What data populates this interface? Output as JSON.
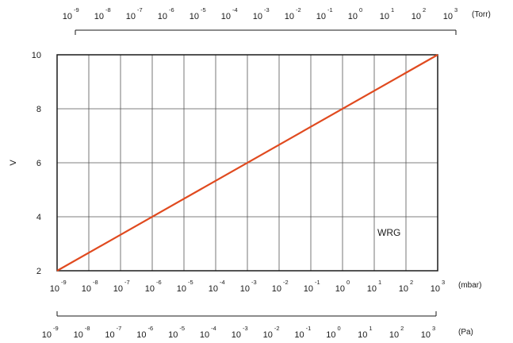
{
  "chart_data": {
    "type": "line",
    "ylabel": "V",
    "y_ticks": [
      "2",
      "4",
      "6",
      "8",
      "10"
    ],
    "ylim": [
      2,
      10
    ],
    "x_scale": "log",
    "x_exponents_mbar": [
      "-9",
      "-8",
      "-7",
      "-6",
      "-5",
      "-4",
      "-3",
      "-2",
      "-1",
      "0",
      "1",
      "2",
      "3"
    ],
    "x_exponents_torr": [
      "-9",
      "-8",
      "-7",
      "-6",
      "-5",
      "-4",
      "-3",
      "-2",
      "-1",
      "0",
      "1",
      "2",
      "3"
    ],
    "x_exponents_pa": [
      "-9",
      "-8",
      "-7",
      "-6",
      "-5",
      "-4",
      "-3",
      "-2",
      "-1",
      "0",
      "1",
      "2",
      "3"
    ],
    "tick_base": "10",
    "units": {
      "mbar": "(mbar)",
      "torr": "(Torr)",
      "pa": "(Pa)"
    },
    "annotation": "WRG",
    "grid": true,
    "line_color": "#e04a1f",
    "series": [
      {
        "x_mbar": [
          1e-09,
          1000
        ],
        "y": [
          2,
          10
        ]
      }
    ]
  }
}
